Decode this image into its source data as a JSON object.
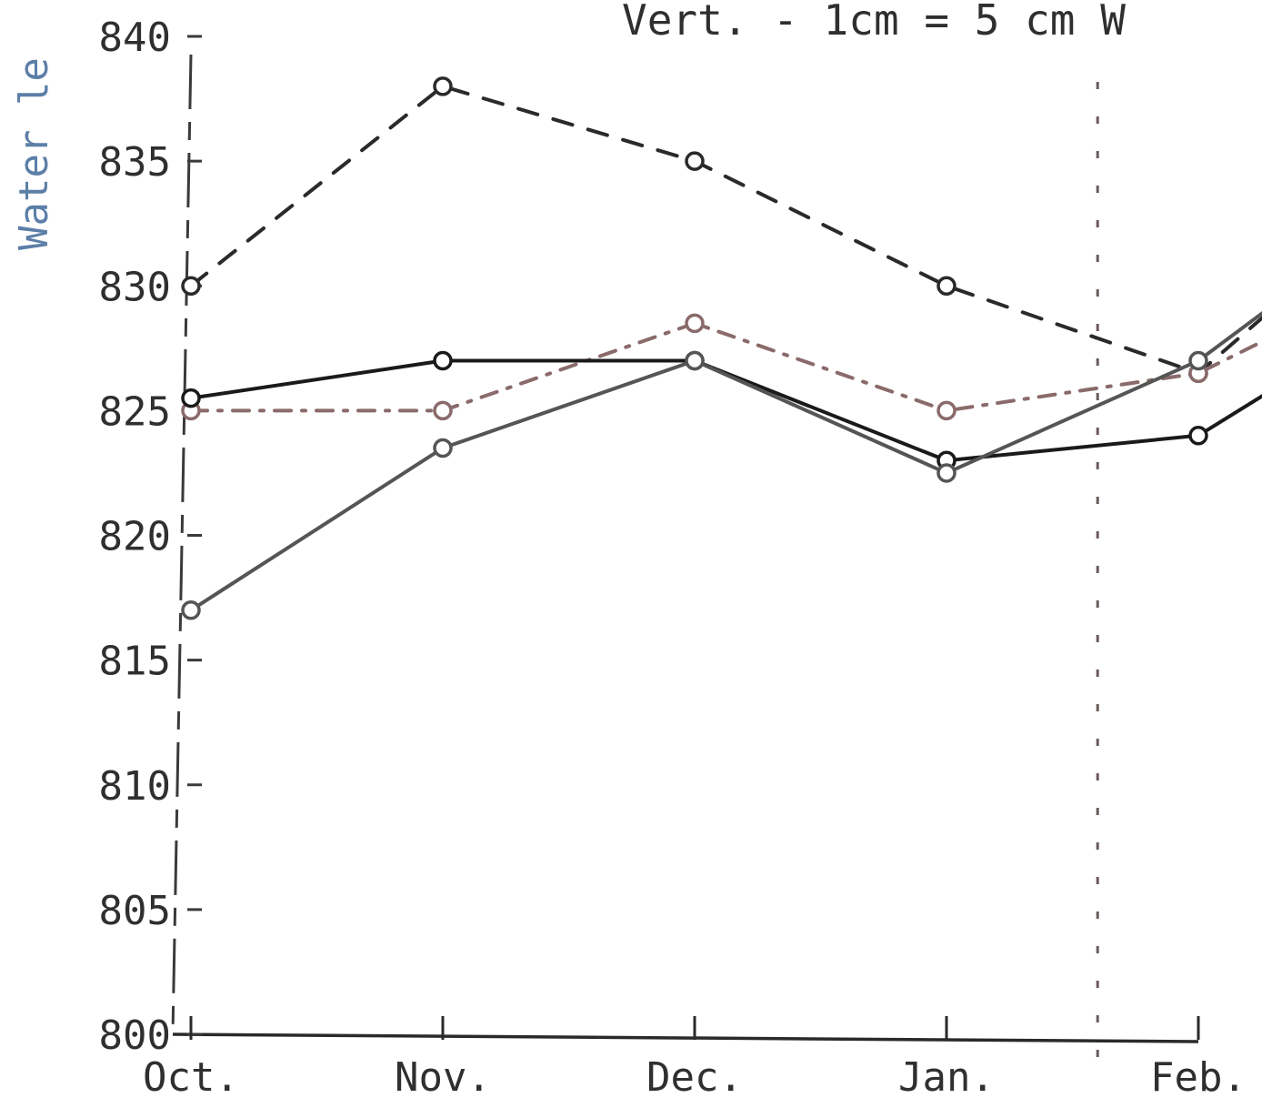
{
  "header": {
    "text": "Vert. - 1cm = 5 cm W"
  },
  "chart_data": {
    "type": "line",
    "ylabel": "Water le",
    "yticks": [
      800,
      805,
      810,
      815,
      820,
      825,
      830,
      835,
      840
    ],
    "ylim": [
      800,
      840
    ],
    "categories": [
      "Oct.",
      "Nov.",
      "Dec.",
      "Jan.",
      "Feb."
    ],
    "grid": false,
    "series": [
      {
        "style": "dashed",
        "color": "#2a2a2a",
        "values": [
          830,
          838,
          835,
          830,
          826.5
        ],
        "end": {
          "x": 4.4,
          "y": 830
        },
        "tag": "oα-"
      },
      {
        "style": "dash-dot",
        "color": "#8a6a6a",
        "values": [
          825,
          825,
          828.5,
          825,
          826.5
        ],
        "end": {
          "x": 4.4,
          "y": 828.5
        },
        "tag": "oα-"
      },
      {
        "style": "solid",
        "color": "#1a1a1a",
        "values": [
          825.5,
          827,
          827,
          823,
          824
        ],
        "end": {
          "x": 4.4,
          "y": 826.5
        },
        "tag": "oα-"
      },
      {
        "style": "solid",
        "color": "#555555",
        "values": [
          817,
          823.5,
          827,
          822.5,
          827
        ],
        "end": {
          "x": 4.4,
          "y": 830
        },
        "tag": "oα-"
      }
    ]
  }
}
